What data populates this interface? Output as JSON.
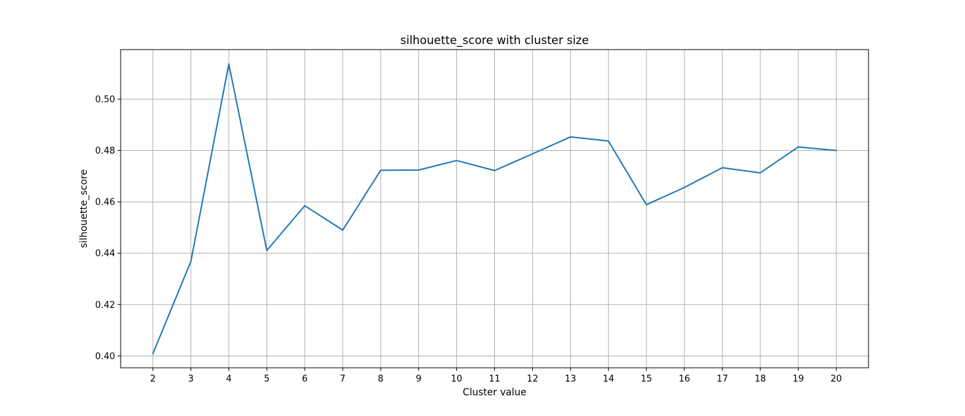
{
  "chart_data": {
    "type": "line",
    "title": "silhouette_score with cluster size",
    "xlabel": "Cluster value",
    "ylabel": "silhouette_score",
    "x": [
      2,
      3,
      4,
      5,
      6,
      7,
      8,
      9,
      10,
      11,
      12,
      13,
      14,
      15,
      16,
      17,
      18,
      19,
      20
    ],
    "series": [
      {
        "color": "#1f77b4",
        "values": [
          0.4009,
          0.4368,
          0.5137,
          0.4411,
          0.4585,
          0.449,
          0.4723,
          0.4724,
          0.4761,
          0.4722,
          0.4787,
          0.4853,
          0.4837,
          0.4589,
          0.4656,
          0.4733,
          0.4713,
          0.4814,
          0.48
        ]
      }
    ],
    "xlim": [
      1.15,
      20.85
    ],
    "ylim": [
      0.3954,
      0.5193
    ],
    "xticks": [
      2,
      3,
      4,
      5,
      6,
      7,
      8,
      9,
      10,
      11,
      12,
      13,
      14,
      15,
      16,
      17,
      18,
      19,
      20
    ],
    "yticks": [
      0.4,
      0.42,
      0.44,
      0.46,
      0.48,
      0.5
    ],
    "ytick_labels": [
      "0.40",
      "0.42",
      "0.44",
      "0.46",
      "0.48",
      "0.50"
    ],
    "grid": true,
    "grid_color": "#b0b0b0",
    "legend": "none"
  }
}
